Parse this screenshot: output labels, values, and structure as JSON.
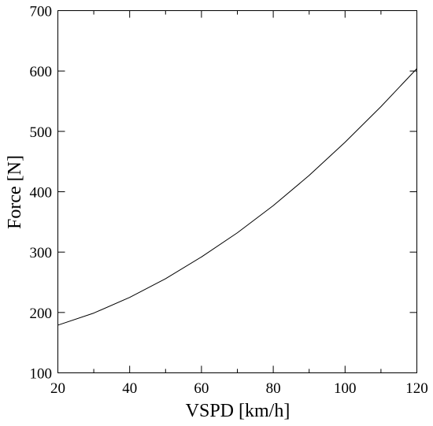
{
  "chart_data": {
    "type": "line",
    "title": "",
    "xlabel": "VSPD [km/h]",
    "ylabel": "Force [N]",
    "xlim": [
      20,
      120
    ],
    "ylim": [
      100,
      700
    ],
    "x_ticks": [
      20,
      40,
      60,
      80,
      100,
      120
    ],
    "x_minor_ticks": [
      30,
      50,
      70,
      90,
      110
    ],
    "y_ticks": [
      100,
      200,
      300,
      400,
      500,
      600,
      700
    ],
    "x_tick_labels": [
      "20",
      "40",
      "60",
      "80",
      "100",
      "120"
    ],
    "y_tick_labels": [
      "100",
      "200",
      "300",
      "400",
      "500",
      "600",
      "700"
    ],
    "grid": false,
    "legend": "none",
    "line_color": "#000000",
    "series": [
      {
        "x": [
          20,
          30,
          40,
          50,
          60,
          70,
          80,
          90,
          100,
          110,
          120
        ],
        "values": [
          179,
          199,
          225,
          256,
          292,
          332,
          377,
          427,
          482,
          541,
          604
        ]
      }
    ]
  }
}
